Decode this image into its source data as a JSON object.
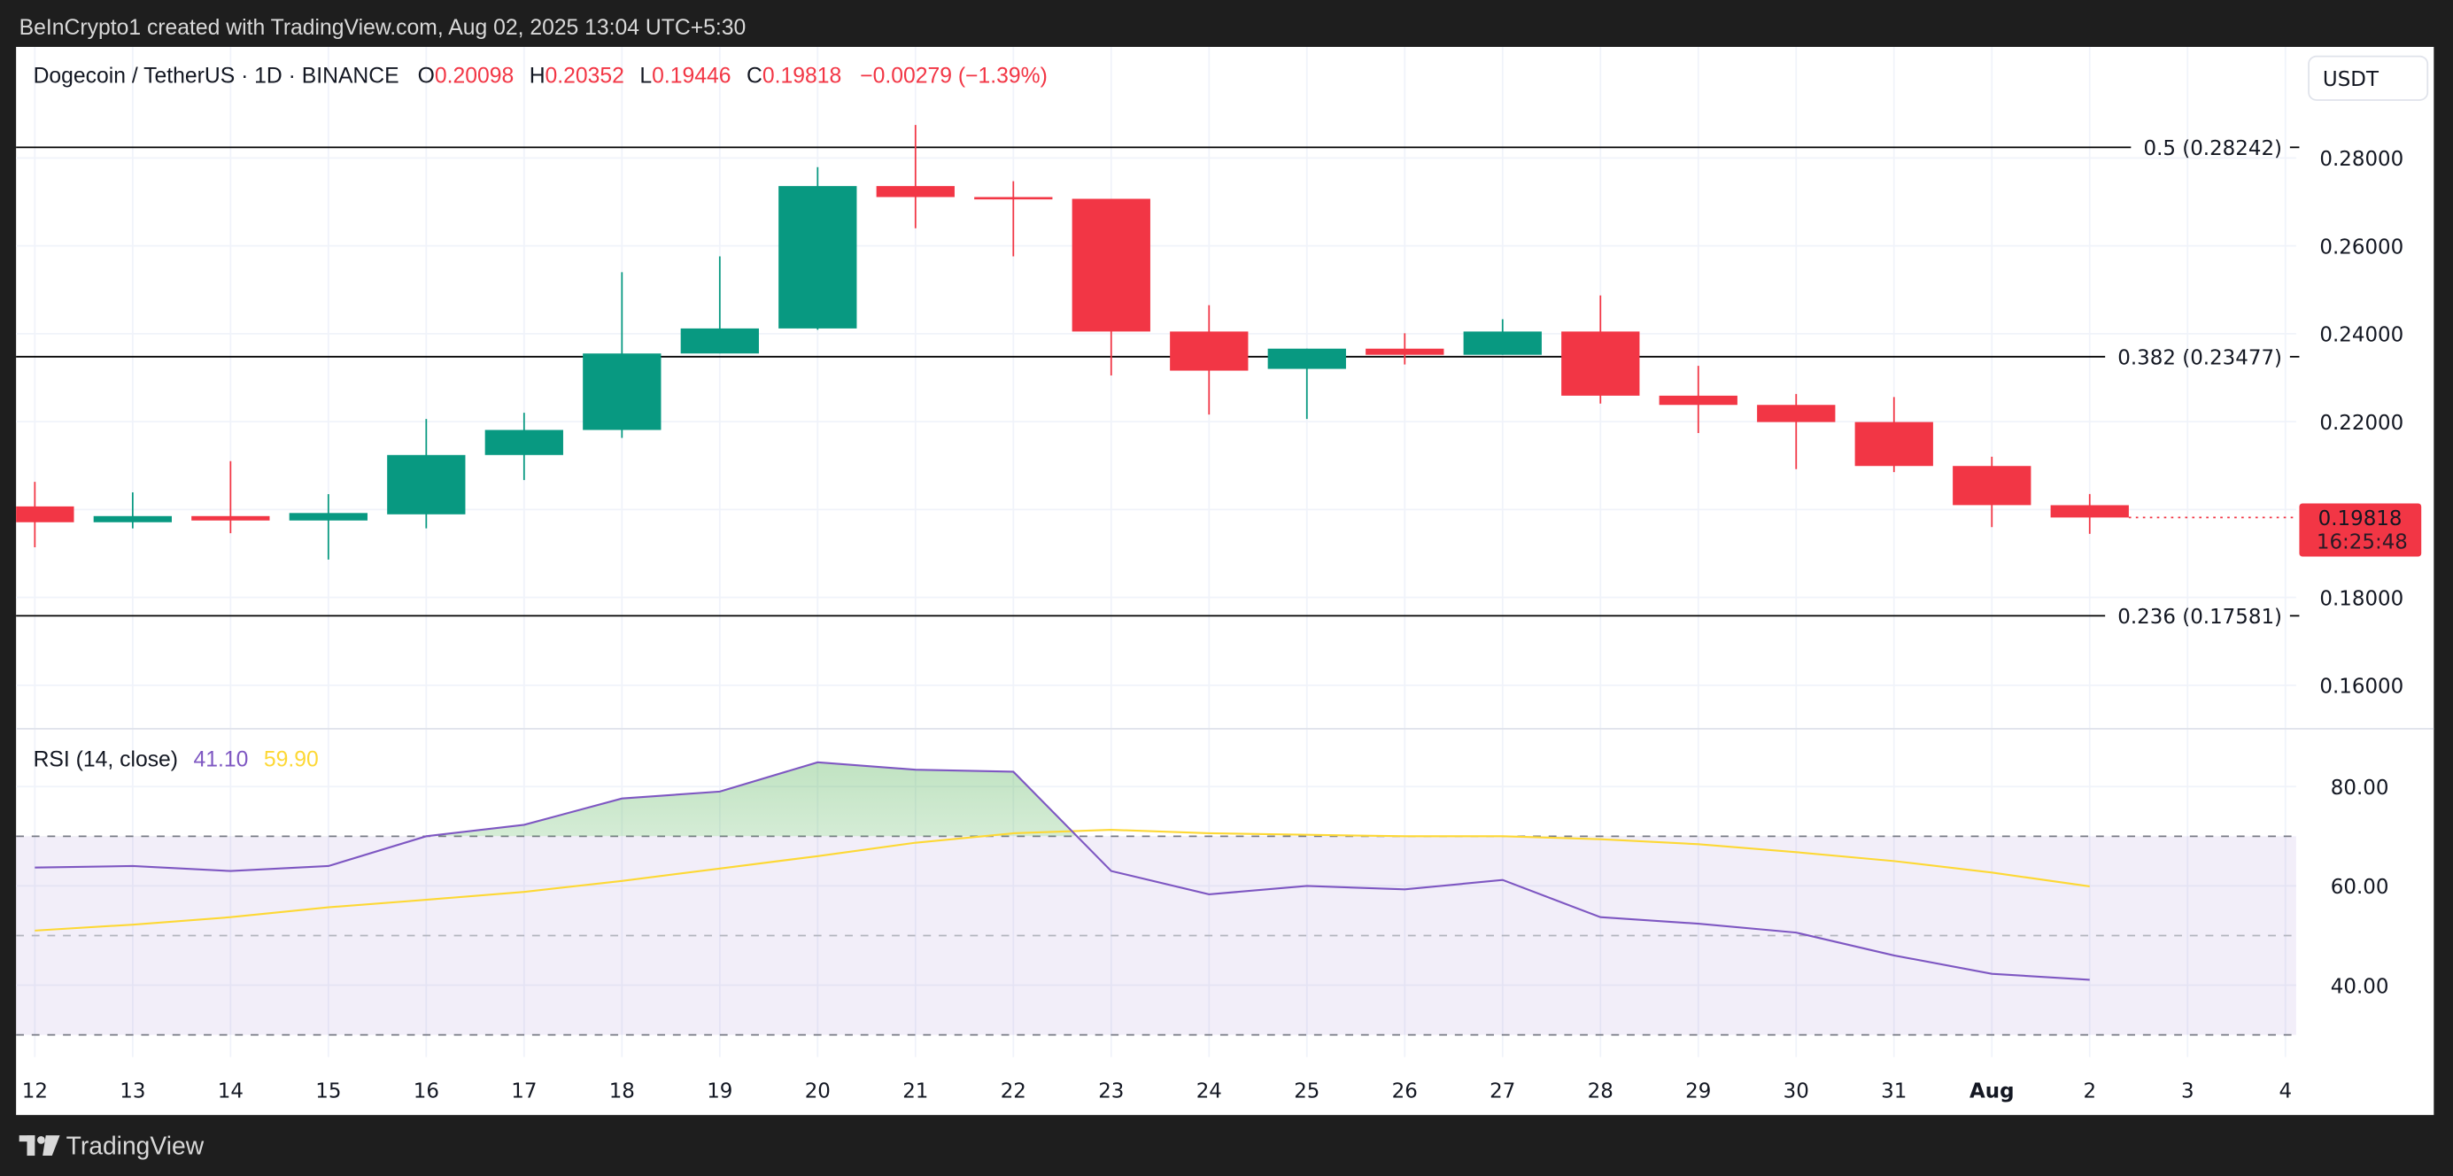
{
  "watermark": "BeInCrypto1 created with TradingView.com, Aug 02, 2025 13:04 UTC+5:30",
  "legend": {
    "symbol": "Dogecoin / TetherUS · 1D · BINANCE",
    "o_label": "O",
    "o": "0.20098",
    "h_label": "H",
    "h": "0.20352",
    "l_label": "L",
    "l": "0.19446",
    "c_label": "C",
    "c": "0.19818",
    "change": "−0.00279 (−1.39%)"
  },
  "currency_button": "USDT",
  "last_price": {
    "value": "0.19818",
    "countdown": "16:25:48"
  },
  "rsi_legend": {
    "name": "RSI (14, close)",
    "rsi": "41.10",
    "ma": "59.90"
  },
  "footer": {
    "brand": "TradingView"
  },
  "colors": {
    "up": "#089981",
    "down": "#f23645",
    "rsi": "#7e57c2",
    "rsi_ma": "#fdd835",
    "fib": "#000000"
  },
  "chart_data": [
    {
      "type": "candlestick",
      "title": "Dogecoin / TetherUS · 1D · BINANCE",
      "x_ticks": [
        "12",
        "13",
        "14",
        "15",
        "16",
        "17",
        "18",
        "19",
        "20",
        "21",
        "22",
        "23",
        "24",
        "25",
        "26",
        "27",
        "28",
        "29",
        "30",
        "31",
        "Aug",
        "2",
        "3",
        "4"
      ],
      "y_ticks": [
        "0.28000",
        "0.26000",
        "0.24000",
        "0.22000",
        "0.18000",
        "0.16000"
      ],
      "ylim": [
        0.148,
        0.292
      ],
      "grid": true,
      "candles": [
        {
          "date": "12",
          "o": 0.2007,
          "h": 0.2063,
          "l": 0.1914,
          "c": 0.1971
        },
        {
          "date": "13",
          "o": 0.1971,
          "h": 0.2039,
          "l": 0.1957,
          "c": 0.1985
        },
        {
          "date": "14",
          "o": 0.1985,
          "h": 0.211,
          "l": 0.1946,
          "c": 0.1975
        },
        {
          "date": "15",
          "o": 0.1975,
          "h": 0.2035,
          "l": 0.1886,
          "c": 0.1992
        },
        {
          "date": "16",
          "o": 0.1989,
          "h": 0.2206,
          "l": 0.1957,
          "c": 0.2124
        },
        {
          "date": "17",
          "o": 0.2124,
          "h": 0.222,
          "l": 0.2067,
          "c": 0.2181
        },
        {
          "date": "18",
          "o": 0.2181,
          "h": 0.254,
          "l": 0.2163,
          "c": 0.2355
        },
        {
          "date": "19",
          "o": 0.2355,
          "h": 0.2576,
          "l": 0.2355,
          "c": 0.2412
        },
        {
          "date": "20",
          "o": 0.2412,
          "h": 0.2779,
          "l": 0.2409,
          "c": 0.2736
        },
        {
          "date": "21",
          "o": 0.2736,
          "h": 0.2875,
          "l": 0.264,
          "c": 0.2711
        },
        {
          "date": "22",
          "o": 0.2711,
          "h": 0.2747,
          "l": 0.2576,
          "c": 0.2707
        },
        {
          "date": "23",
          "o": 0.2707,
          "h": 0.2707,
          "l": 0.2305,
          "c": 0.2405
        },
        {
          "date": "24",
          "o": 0.2405,
          "h": 0.2465,
          "l": 0.2216,
          "c": 0.2316
        },
        {
          "date": "25",
          "o": 0.232,
          "h": 0.2366,
          "l": 0.2206,
          "c": 0.2366
        },
        {
          "date": "26",
          "o": 0.2366,
          "h": 0.2401,
          "l": 0.233,
          "c": 0.2352
        },
        {
          "date": "27",
          "o": 0.2352,
          "h": 0.2433,
          "l": 0.2352,
          "c": 0.2405
        },
        {
          "date": "28",
          "o": 0.2405,
          "h": 0.2487,
          "l": 0.2241,
          "c": 0.2259
        },
        {
          "date": "29",
          "o": 0.2259,
          "h": 0.2327,
          "l": 0.2174,
          "c": 0.2238
        },
        {
          "date": "30",
          "o": 0.2238,
          "h": 0.2263,
          "l": 0.2092,
          "c": 0.2199
        },
        {
          "date": "31",
          "o": 0.2199,
          "h": 0.2256,
          "l": 0.2085,
          "c": 0.2099
        },
        {
          "date": "Aug 1",
          "o": 0.2099,
          "h": 0.212,
          "l": 0.196,
          "c": 0.201
        },
        {
          "date": "Aug 2",
          "o": 0.20098,
          "h": 0.20352,
          "l": 0.19446,
          "c": 0.19818
        }
      ],
      "fib_levels": [
        {
          "label": "0.5 (0.28242)",
          "value": 0.28242
        },
        {
          "label": "0.382 (0.23477)",
          "value": 0.23477
        },
        {
          "label": "0.236 (0.17581)",
          "value": 0.17581
        }
      ],
      "last_price": 0.19818
    },
    {
      "type": "line",
      "title": "RSI (14, close)",
      "y_ticks": [
        "80.00",
        "60.00",
        "40.00"
      ],
      "ylim": [
        27,
        92
      ],
      "bands": {
        "upper": 70,
        "middle": 50,
        "lower": 30
      },
      "series": [
        {
          "name": "RSI",
          "values": [
            63.7,
            64.0,
            63.0,
            64.0,
            70.0,
            72.3,
            77.6,
            79.0,
            84.9,
            83.4,
            83.0,
            63.0,
            58.3,
            60.0,
            59.3,
            61.2,
            53.7,
            52.4,
            50.6,
            46.0,
            42.3,
            41.1
          ]
        },
        {
          "name": "RSI MA",
          "values": [
            51.0,
            52.2,
            53.7,
            55.7,
            57.2,
            58.8,
            61.0,
            63.5,
            66.0,
            68.7,
            70.6,
            71.3,
            70.6,
            70.3,
            70.0,
            70.0,
            69.4,
            68.4,
            66.8,
            65.0,
            62.7,
            59.9
          ]
        }
      ]
    }
  ]
}
